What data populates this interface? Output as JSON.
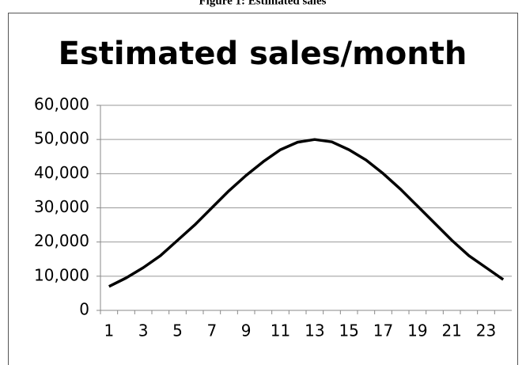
{
  "caption": "Figure 1: Estimated sales",
  "chart_data": {
    "type": "line",
    "title": "Estimated sales/month",
    "categories": [
      1,
      null,
      3,
      null,
      5,
      null,
      7,
      null,
      9,
      null,
      11,
      null,
      13,
      null,
      15,
      null,
      17,
      null,
      19,
      null,
      21,
      null,
      23,
      null
    ],
    "series": [
      {
        "name": null,
        "color": "#000000",
        "values": [
          7000,
          9500,
          12500,
          16000,
          20500,
          25000,
          30000,
          35000,
          39500,
          43500,
          47000,
          49200,
          50000,
          49300,
          47000,
          44000,
          40000,
          35500,
          30500,
          25500,
          20500,
          16000,
          12500,
          9000
        ]
      }
    ],
    "ylim": [
      0,
      60000
    ],
    "yticks": [
      0,
      {
        "value": 10000,
        "label": "10,000"
      },
      {
        "value": 20000,
        "label": "20,000"
      },
      {
        "value": 30000,
        "label": "30,000"
      },
      {
        "value": 40000,
        "label": "40,000"
      },
      {
        "value": 50000,
        "label": "50,000"
      },
      {
        "value": 60000,
        "label": "60,000"
      }
    ],
    "grid": true
  }
}
